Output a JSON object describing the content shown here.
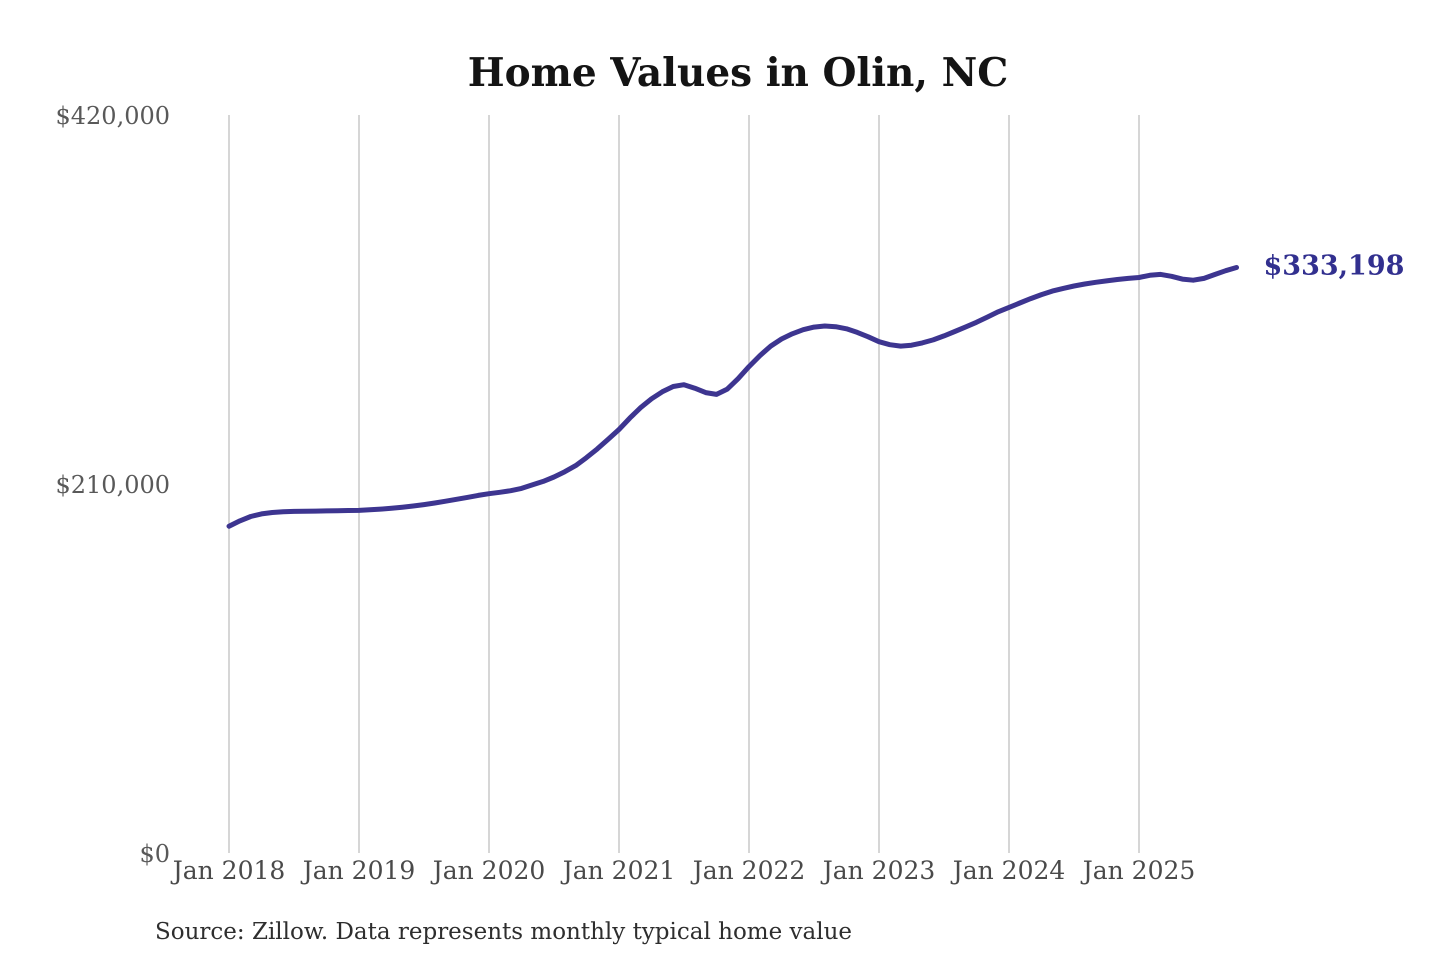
{
  "title": "Home Values in Olin, NC",
  "source_note": "Source: Zillow. Data represents monthly typical home value",
  "latest_value_label": "$333,198",
  "colors": {
    "line": "#3d3590",
    "end_label": "#32308f",
    "grid": "#c9c9c9",
    "x_axis_text": "#4a4a4a",
    "y_axis_text": "#595959",
    "title_text": "#141414",
    "source_text": "#2e2e2e",
    "background": "#ffffff"
  },
  "chart_data": {
    "type": "line",
    "title": "Home Values in Olin, NC",
    "series_name": "Monthly typical home value (Zillow)",
    "xlabel": "",
    "ylabel": "",
    "ylim": [
      0,
      420000
    ],
    "grid": "vertical-only",
    "legend_position": "none",
    "x_start": "Jan 2018",
    "x_end": "Oct 2025",
    "x_tick_labels": [
      "Jan 2018",
      "Jan 2019",
      "Jan 2020",
      "Jan 2021",
      "Jan 2022",
      "Jan 2023",
      "Jan 2024",
      "Jan 2025"
    ],
    "y_ticks": [
      {
        "label": "$420,000",
        "value": 420000
      },
      {
        "label": "$210,000",
        "value": 210000
      },
      {
        "label": "$0",
        "value": 0
      }
    ],
    "latest_value": 333198,
    "monthly_values": [
      186000,
      189000,
      191500,
      193000,
      193800,
      194200,
      194400,
      194500,
      194600,
      194700,
      194800,
      194900,
      195000,
      195300,
      195700,
      196200,
      196800,
      197500,
      198300,
      199200,
      200200,
      201300,
      202400,
      203500,
      204500,
      205300,
      206200,
      207500,
      209500,
      211500,
      214000,
      217000,
      220500,
      225000,
      230000,
      235500,
      241000,
      247500,
      253500,
      258500,
      262500,
      265500,
      266500,
      264500,
      262000,
      261000,
      264000,
      270000,
      276800,
      283000,
      288500,
      292500,
      295500,
      297800,
      299300,
      299900,
      299500,
      298300,
      296300,
      293800,
      291000,
      289300,
      288500,
      289000,
      290300,
      292000,
      294300,
      296800,
      299400,
      302000,
      305000,
      308000,
      310500,
      313000,
      315500,
      317800,
      319800,
      321300,
      322700,
      323800,
      324800,
      325600,
      326400,
      327000,
      327500,
      328800,
      329300,
      328200,
      326600,
      326000,
      327000,
      329200,
      331400,
      333198
    ]
  }
}
